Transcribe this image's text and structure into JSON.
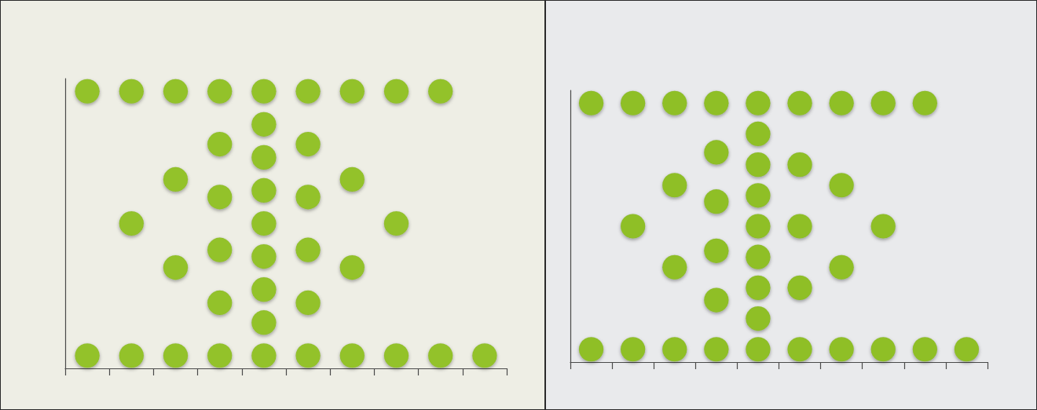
{
  "chart_data": [
    {
      "type": "bar",
      "marker": "circle",
      "color": "#93c22a",
      "categories": [
        null,
        null,
        null,
        null,
        null,
        null,
        null,
        null,
        null,
        null
      ],
      "values": [
        2,
        3,
        4,
        6,
        9,
        6,
        4,
        3,
        2,
        1
      ],
      "ylim": [
        0,
        11
      ],
      "yticks": [],
      "tick_labels": false,
      "grid": false
    },
    {
      "type": "bar",
      "marker": "circle",
      "color": "#8fbf28",
      "categories": [
        null,
        null,
        null,
        null,
        null,
        null,
        null,
        null,
        null,
        null
      ],
      "values": [
        2,
        3,
        4,
        6,
        9,
        5,
        4,
        3,
        2,
        1
      ],
      "ylim": [
        0,
        11
      ],
      "yticks": [],
      "tick_labels": false,
      "grid": false
    }
  ]
}
